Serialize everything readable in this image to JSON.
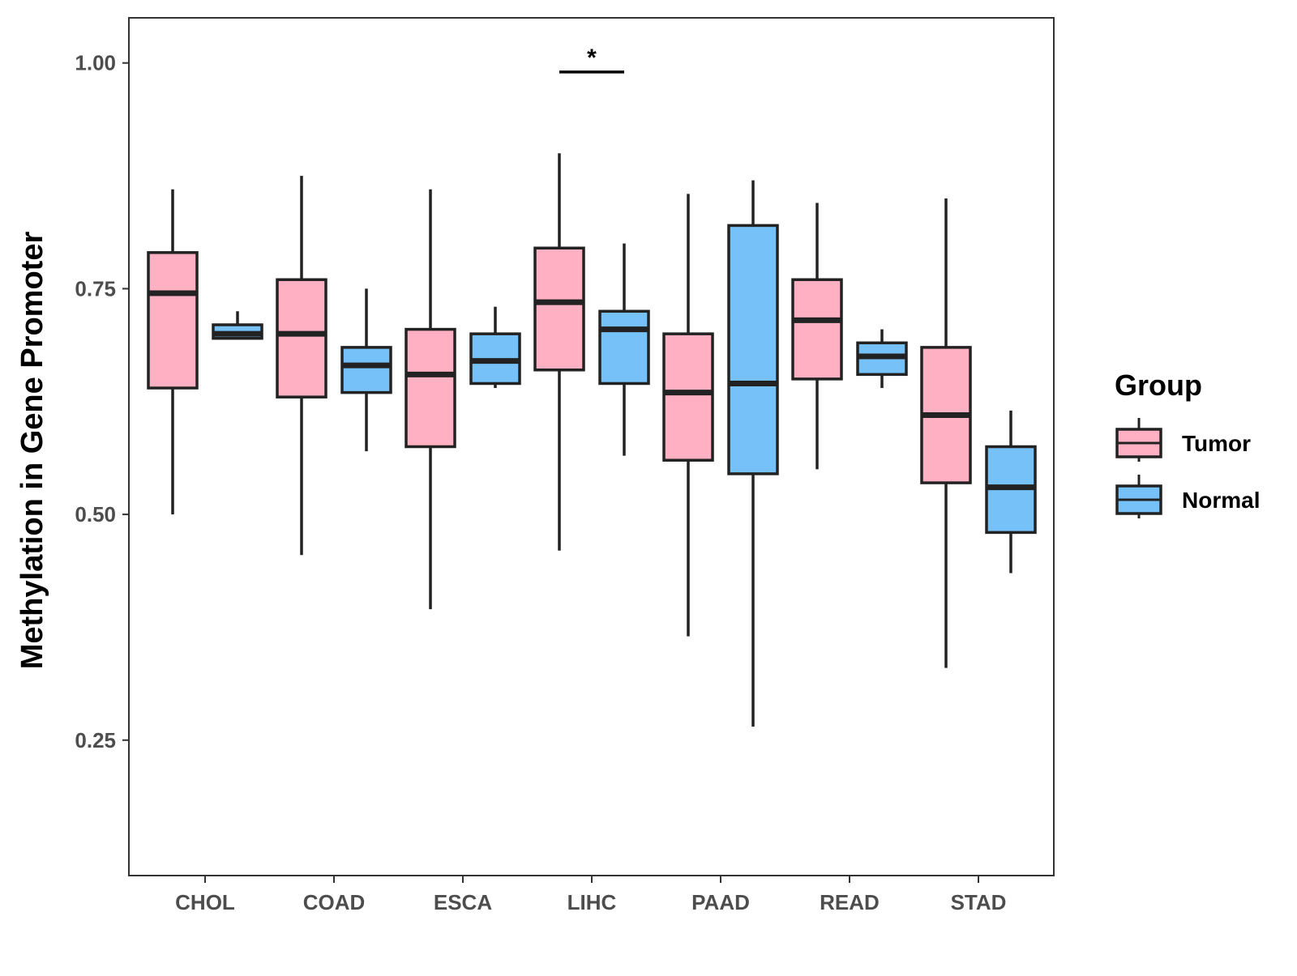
{
  "chart_data": {
    "type": "boxplot",
    "title": "",
    "xlabel": "",
    "ylabel": "Methylation in Gene Promoter",
    "ylim": [
      0.1,
      1.05
    ],
    "yticks": [
      0.25,
      0.5,
      0.75,
      1.0
    ],
    "ytick_labels": [
      "0.25",
      "0.50",
      "0.75",
      "1.00"
    ],
    "categories": [
      "CHOL",
      "COAD",
      "ESCA",
      "LIHC",
      "PAAD",
      "READ",
      "STAD"
    ],
    "legend": {
      "title": "Group",
      "position": "right",
      "entries": [
        {
          "name": "Tumor",
          "color": "#ffb0c2"
        },
        {
          "name": "Normal",
          "color": "#76c1f8"
        }
      ]
    },
    "series": [
      {
        "name": "Tumor",
        "color": "#ffb0c2",
        "boxes": [
          {
            "category": "CHOL",
            "min": 0.5,
            "q1": 0.64,
            "median": 0.745,
            "q3": 0.79,
            "max": 0.86
          },
          {
            "category": "COAD",
            "min": 0.455,
            "q1": 0.63,
            "median": 0.7,
            "q3": 0.76,
            "max": 0.875
          },
          {
            "category": "ESCA",
            "min": 0.395,
            "q1": 0.575,
            "median": 0.655,
            "q3": 0.705,
            "max": 0.86
          },
          {
            "category": "LIHC",
            "min": 0.46,
            "q1": 0.66,
            "median": 0.735,
            "q3": 0.795,
            "max": 0.9
          },
          {
            "category": "PAAD",
            "min": 0.365,
            "q1": 0.56,
            "median": 0.635,
            "q3": 0.7,
            "max": 0.855
          },
          {
            "category": "READ",
            "min": 0.55,
            "q1": 0.65,
            "median": 0.715,
            "q3": 0.76,
            "max": 0.845
          },
          {
            "category": "STAD",
            "min": 0.33,
            "q1": 0.535,
            "median": 0.61,
            "q3": 0.685,
            "max": 0.85
          }
        ]
      },
      {
        "name": "Normal",
        "color": "#76c1f8",
        "boxes": [
          {
            "category": "CHOL",
            "min": 0.695,
            "q1": 0.695,
            "median": 0.7,
            "q3": 0.71,
            "max": 0.725
          },
          {
            "category": "COAD",
            "min": 0.57,
            "q1": 0.635,
            "median": 0.665,
            "q3": 0.685,
            "max": 0.75
          },
          {
            "category": "ESCA",
            "min": 0.64,
            "q1": 0.645,
            "median": 0.67,
            "q3": 0.7,
            "max": 0.73
          },
          {
            "category": "LIHC",
            "min": 0.565,
            "q1": 0.645,
            "median": 0.705,
            "q3": 0.725,
            "max": 0.8
          },
          {
            "category": "PAAD",
            "min": 0.265,
            "q1": 0.545,
            "median": 0.645,
            "q3": 0.82,
            "max": 0.87
          },
          {
            "category": "READ",
            "min": 0.64,
            "q1": 0.655,
            "median": 0.675,
            "q3": 0.69,
            "max": 0.705
          },
          {
            "category": "STAD",
            "min": 0.435,
            "q1": 0.48,
            "median": 0.53,
            "q3": 0.575,
            "max": 0.615
          }
        ]
      }
    ],
    "annotations": [
      {
        "category": "LIHC",
        "label": "*",
        "y": 0.99
      }
    ]
  }
}
